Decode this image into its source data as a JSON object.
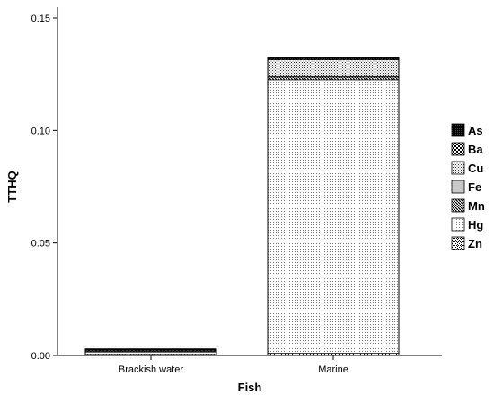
{
  "chart_data": {
    "type": "bar",
    "stacked": true,
    "xlabel": "Fish",
    "ylabel": "TTHQ",
    "ylim": [
      0,
      0.15
    ],
    "yticks": [
      "0.00",
      "0.05",
      "0.10",
      "0.15"
    ],
    "categories": [
      "Brackish water",
      "Marine"
    ],
    "legend_position": "right",
    "series": [
      {
        "name": "Zn",
        "values": [
          0.0005,
          0.001
        ],
        "pattern": "cross-dots"
      },
      {
        "name": "Hg",
        "values": [
          0.001,
          0.1215
        ],
        "pattern": "fine-dots"
      },
      {
        "name": "Mn",
        "values": [
          0.0005,
          0.0012
        ],
        "pattern": "diagonal-dense"
      },
      {
        "name": "Fe",
        "values": [
          0.0001,
          0.0003
        ],
        "pattern": "solid-gray"
      },
      {
        "name": "Cu",
        "values": [
          0.0002,
          0.0075
        ],
        "pattern": "medium-dots"
      },
      {
        "name": "Ba",
        "values": [
          0.0002,
          0.0002
        ],
        "pattern": "checker"
      },
      {
        "name": "As",
        "values": [
          0.0003,
          0.0006
        ],
        "pattern": "dense-black"
      }
    ],
    "legend_order": [
      "As",
      "Ba",
      "Cu",
      "Fe",
      "Mn",
      "Hg",
      "Zn"
    ]
  }
}
